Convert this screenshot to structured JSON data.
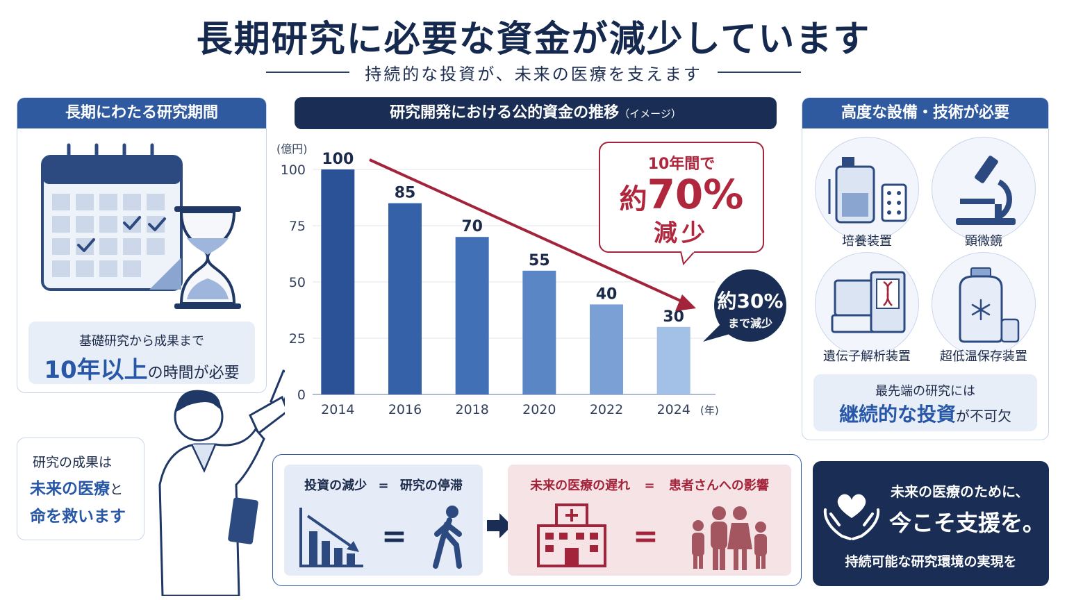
{
  "header": {
    "title": "長期研究に必要な資金が減少しています",
    "subtitle": "持続的な投資が、未来の医療を支えます"
  },
  "left_panel": {
    "heading": "長期にわたる研究期間",
    "caption_line1": "基礎研究から成果まで",
    "caption_big": "10年以上",
    "caption_rest": "の時間が必要"
  },
  "chart_section": {
    "heading": "研究開発における公的資金の推移",
    "heading_note": "（イメージ）",
    "callout_line1": "10年間で",
    "callout_prefix": "約",
    "callout_big": "70%",
    "callout_line3": "減少",
    "bubble_line1": "約30%",
    "bubble_line2": "まで減少"
  },
  "chart_data": {
    "type": "bar",
    "ylabel": "(億円)",
    "xlabel": "(年)",
    "categories": [
      "2014",
      "2016",
      "2018",
      "2020",
      "2022",
      "2024"
    ],
    "values": [
      100,
      85,
      70,
      55,
      40,
      30
    ],
    "value_labels": [
      "100",
      "85",
      "70",
      "55",
      "40",
      "30"
    ],
    "ylim": [
      0,
      100
    ],
    "yticks": [
      "0",
      "25",
      "50",
      "75",
      "100"
    ],
    "ytick_values": [
      0,
      25,
      50,
      75,
      100
    ],
    "bar_colors": [
      "#2b5296",
      "#3461a8",
      "#4270b6",
      "#5a86c6",
      "#7aa0d6",
      "#a3c0e6"
    ],
    "trend_color": "#a3243a",
    "grid": true
  },
  "right_panel": {
    "heading": "高度な設備・技術が必要",
    "equipment": [
      "培養装置",
      "顕微鏡",
      "遺伝子解析装置",
      "超低温保存装置"
    ],
    "caption_line1": "最先端の研究には",
    "caption_big": "継続的な投資",
    "caption_rest": "が不可欠"
  },
  "speech": {
    "line1": "研究の成果は",
    "line2_big": "未来の医療",
    "line2_rest": "と",
    "line3": "命を救います"
  },
  "flow": {
    "left_a": "投資の減少",
    "left_eq": "=",
    "left_b": "研究の停滞",
    "right_a": "未来の医療の遅れ",
    "right_eq": "=",
    "right_b": "患者さんへの影響",
    "eq_sign": "="
  },
  "cta": {
    "line1": "未来の医療のために、",
    "line2": "今こそ支援を。",
    "line3": "持続可能な研究環境の実現を"
  },
  "colors": {
    "navy": "#1a2e55",
    "blue": "#2f5aa0",
    "red": "#a3243a"
  }
}
